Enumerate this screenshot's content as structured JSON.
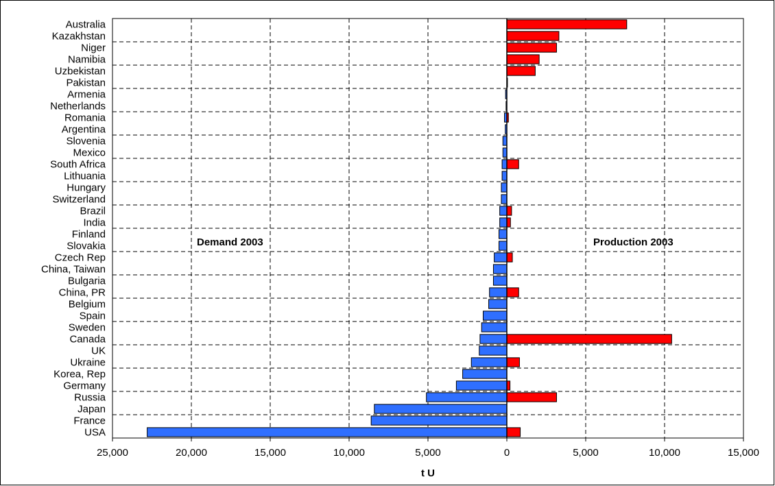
{
  "chart_data": {
    "type": "bar",
    "orientation": "horizontal",
    "categories": [
      "Australia",
      "Kazakhstan",
      "Niger",
      "Namibia",
      "Uzbekistan",
      "Pakistan",
      "Armenia",
      "Netherlands",
      "Romania",
      "Argentina",
      "Slovenia",
      "Mexico",
      "South Africa",
      "Lithuania",
      "Hungary",
      "Switzerland",
      "Brazil",
      "India",
      "Finland",
      "Slovakia",
      "Czech Rep",
      "China, Taiwan",
      "Bulgaria",
      "China, PR",
      "Belgium",
      "Spain",
      "Sweden",
      "Canada",
      "UK",
      "Ukraine",
      "Korea, Rep",
      "Germany",
      "Russia",
      "Japan",
      "France",
      "USA"
    ],
    "series": [
      {
        "color": "#2f6fff",
        "values": [
          0,
          0,
          0,
          0,
          0,
          0,
          -80,
          -50,
          -150,
          -100,
          -250,
          -250,
          -300,
          -300,
          -350,
          -350,
          -450,
          -450,
          -500,
          -500,
          -800,
          -850,
          -850,
          -1100,
          -1150,
          -1500,
          -1600,
          -1700,
          -1750,
          -2250,
          -2800,
          -3200,
          -5100,
          -8400,
          -8600,
          -22800
        ]
      },
      {
        "color": "#ff0000",
        "values": [
          7600,
          3300,
          3150,
          2050,
          1800,
          40,
          0,
          0,
          100,
          0,
          0,
          0,
          750,
          0,
          0,
          0,
          300,
          230,
          0,
          0,
          350,
          0,
          0,
          750,
          0,
          0,
          0,
          10450,
          0,
          800,
          0,
          200,
          3150,
          0,
          0,
          850
        ]
      }
    ],
    "xlabel": "t U",
    "xlim": [
      -25000,
      15000
    ],
    "xticks": [
      -25000,
      -20000,
      -15000,
      -10000,
      -5000,
      0,
      5000,
      10000,
      15000
    ],
    "xtick_labels": [
      "25,000",
      "20,000",
      "15,000",
      "10,000",
      "5,000",
      "0",
      "5,000",
      "10,000",
      "15,000"
    ],
    "grid": true,
    "annotations": [
      "Demand 2003",
      "Production 2003"
    ]
  }
}
